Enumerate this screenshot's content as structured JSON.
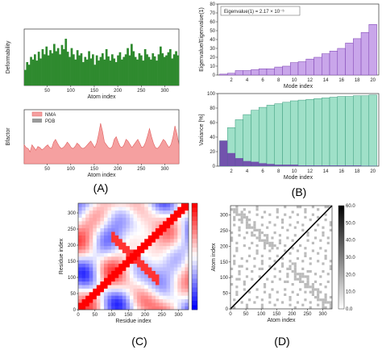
{
  "captions": {
    "A": "(A)",
    "B": "(B)",
    "C": "(C)",
    "D": "(D)"
  },
  "colors": {
    "green": "#2f8a2f",
    "pinkFill": "#f5a0a0",
    "pinkLine": "#e06060",
    "pdbGrey": "#9a9a9a",
    "purple": "#c9a6ea",
    "purpleEdge": "#7a3fb0",
    "teal": "#9fe0c8",
    "tealEdge": "#3b9a7c",
    "darkPurple": "#6a3aa8"
  },
  "chart_data": [
    {
      "id": "deformability",
      "type": "area",
      "xlabel": "Atom index",
      "ylabel": "Deformability",
      "x_ticks": [
        "50",
        "100",
        "150",
        "200",
        "250",
        "300"
      ],
      "xlim": [
        1,
        330
      ],
      "series": [
        {
          "values": [
            0.3,
            0.45,
            0.4,
            0.55,
            0.5,
            0.6,
            0.48,
            0.65,
            0.52,
            0.7,
            0.6,
            0.75,
            0.58,
            0.68,
            0.62,
            0.8,
            0.66,
            0.72,
            0.6,
            0.78,
            0.7,
            0.9,
            0.65,
            0.55,
            0.72,
            0.6,
            0.5,
            0.68,
            0.58,
            0.62,
            0.45,
            0.55,
            0.5,
            0.66,
            0.52,
            0.6,
            0.4,
            0.58,
            0.48,
            0.55,
            0.62,
            0.5,
            0.7,
            0.56,
            0.48,
            0.6,
            0.52,
            0.45,
            0.58,
            0.64,
            0.5,
            0.55,
            0.6,
            0.72,
            0.58,
            0.8,
            0.66,
            0.55,
            0.5,
            0.62,
            0.58,
            0.48,
            0.7,
            0.6,
            0.55,
            0.5,
            0.62,
            0.56,
            0.48,
            0.6,
            0.75,
            0.62,
            0.55,
            0.58,
            0.64,
            0.7,
            0.52,
            0.6,
            0.66,
            0.58
          ]
        }
      ]
    },
    {
      "id": "bfactor",
      "type": "area",
      "xlabel": "Atom index",
      "ylabel": "Bfactor",
      "x_ticks": [
        "50",
        "100",
        "150",
        "200",
        "250",
        "300"
      ],
      "xlim": [
        1,
        330
      ],
      "legend": [
        "NMA",
        "PDB"
      ],
      "series": [
        {
          "name": "NMA",
          "values": [
            0.35,
            0.3,
            0.28,
            0.22,
            0.35,
            0.3,
            0.25,
            0.32,
            0.3,
            0.26,
            0.28,
            0.32,
            0.35,
            0.3,
            0.28,
            0.4,
            0.45,
            0.38,
            0.32,
            0.28,
            0.3,
            0.34,
            0.4,
            0.36,
            0.3,
            0.28,
            0.32,
            0.38,
            0.35,
            0.3,
            0.28,
            0.3,
            0.34,
            0.38,
            0.42,
            0.36,
            0.3,
            0.38,
            0.55,
            0.75,
            0.6,
            0.4,
            0.35,
            0.3,
            0.28,
            0.32,
            0.45,
            0.5,
            0.4,
            0.32,
            0.3,
            0.35,
            0.45,
            0.42,
            0.36,
            0.3,
            0.35,
            0.4,
            0.45,
            0.38,
            0.3,
            0.32,
            0.4,
            0.52,
            0.65,
            0.5,
            0.38,
            0.3,
            0.28,
            0.32,
            0.38,
            0.45,
            0.42,
            0.35,
            0.3,
            0.36,
            0.5,
            0.7,
            0.55,
            0.35
          ]
        }
      ]
    },
    {
      "id": "eigenvalues",
      "type": "bar",
      "xlabel": "Mode index",
      "ylabel": "Eigenvalue/Eigenvalue(1)",
      "annotation": "Eigenvalue(1) = 2.17 × 10⁻⁵",
      "categories": [
        1,
        2,
        3,
        4,
        5,
        6,
        7,
        8,
        9,
        10,
        11,
        12,
        13,
        14,
        15,
        16,
        17,
        18,
        19,
        20
      ],
      "x_ticks": [
        "2",
        "4",
        "6",
        "8",
        "10",
        "12",
        "14",
        "16",
        "18",
        "20"
      ],
      "y_ticks": [
        "0",
        "10",
        "20",
        "30",
        "40",
        "50",
        "60",
        "70",
        "80"
      ],
      "ylim": [
        0,
        80
      ],
      "values": [
        1,
        2,
        5,
        5,
        6,
        7,
        7,
        9,
        10,
        14,
        15,
        18,
        20,
        24,
        27,
        30,
        36,
        41,
        48,
        57
      ]
    },
    {
      "id": "variance",
      "type": "bar",
      "xlabel": "Mode index",
      "ylabel": "Variance [%]",
      "categories": [
        1,
        2,
        3,
        4,
        5,
        6,
        7,
        8,
        9,
        10,
        11,
        12,
        13,
        14,
        15,
        16,
        17,
        18,
        19,
        20
      ],
      "x_ticks": [
        "2",
        "4",
        "6",
        "8",
        "10",
        "12",
        "14",
        "16",
        "18",
        "20"
      ],
      "y_ticks": [
        "0",
        "20",
        "40",
        "60",
        "80",
        "100"
      ],
      "ylim": [
        0,
        100
      ],
      "series": [
        {
          "values": [
            35,
            53,
            64,
            71,
            77,
            81,
            84,
            86,
            88,
            90,
            91,
            92,
            93,
            94,
            95,
            96,
            96,
            97,
            97,
            98
          ]
        },
        {
          "values": [
            35,
            18,
            11,
            7,
            6,
            4,
            3,
            2,
            2,
            2,
            1,
            1,
            1,
            1,
            1,
            1,
            1,
            1,
            0.5,
            0.5
          ]
        }
      ]
    },
    {
      "id": "correlation",
      "type": "heatmap",
      "xlabel": "Residue index",
      "ylabel": "Residue index",
      "x_ticks": [
        "0",
        "50",
        "100",
        "150",
        "200",
        "250",
        "300"
      ],
      "y_ticks": [
        "0",
        "50",
        "100",
        "150",
        "200",
        "250",
        "300"
      ],
      "xlim": [
        0,
        330
      ],
      "ylim": [
        0,
        330
      ]
    },
    {
      "id": "contact",
      "type": "heatmap",
      "xlabel": "Atom index",
      "ylabel": "Atom index",
      "x_ticks": [
        "0",
        "50",
        "100",
        "150",
        "200",
        "250",
        "300"
      ],
      "y_ticks": [
        "0",
        "50",
        "100",
        "150",
        "200",
        "250",
        "300"
      ],
      "colorbar_ticks": [
        "0.0",
        "10.0",
        "20.0",
        "30.0",
        "40.0",
        "50.0",
        "60.0"
      ],
      "xlim": [
        0,
        330
      ],
      "ylim": [
        0,
        330
      ]
    }
  ]
}
